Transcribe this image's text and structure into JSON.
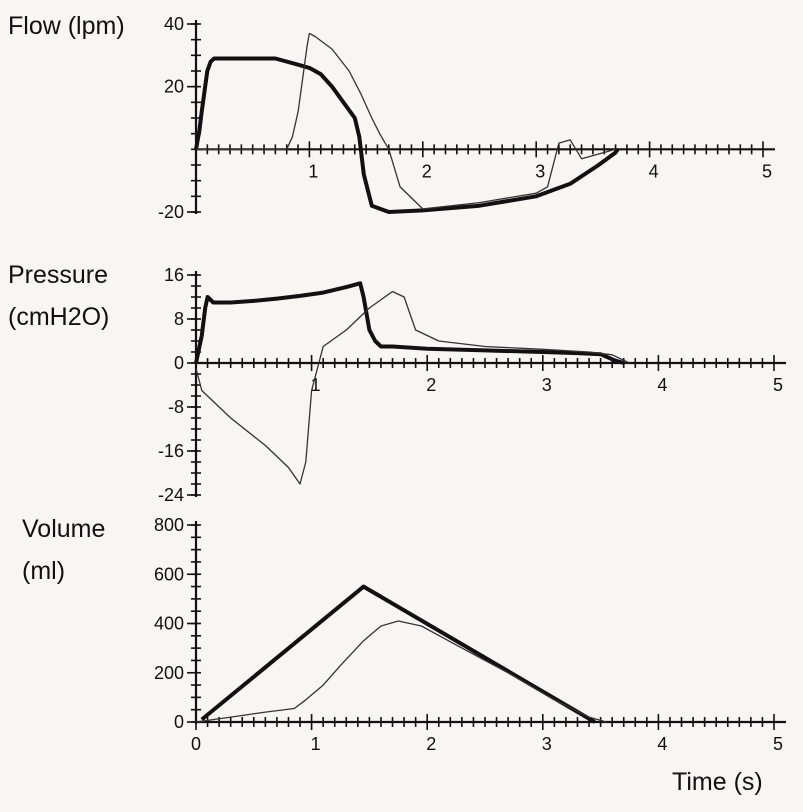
{
  "x_axis_label": "Time (s)",
  "chart_data": [
    {
      "type": "line",
      "title": "",
      "ylabel": "Flow (lpm)",
      "ylabel_lines": [
        "Flow (lpm)"
      ],
      "xlabel": "",
      "xlim": [
        0,
        5
      ],
      "ylim": [
        -20,
        40
      ],
      "yticks": [
        {
          "v": 40,
          "t": "40"
        },
        {
          "v": 20,
          "t": "20"
        },
        {
          "v": -20,
          "t": "-20"
        }
      ],
      "series": [
        {
          "name": "thick",
          "x": [
            0,
            0.03,
            0.05,
            0.1,
            0.13,
            0.16,
            0.3,
            0.5,
            0.7,
            0.9,
            1.0,
            1.1,
            1.2,
            1.3,
            1.4,
            1.44,
            1.48,
            1.55,
            1.7,
            2.0,
            2.5,
            3.0,
            3.3,
            3.55,
            3.7,
            3.72
          ],
          "y": [
            0,
            6,
            12,
            25,
            28,
            29,
            29,
            29,
            29,
            27,
            26,
            24,
            20,
            15,
            10,
            4,
            -8,
            -18,
            -20,
            -19.5,
            -18,
            -15,
            -11,
            -5,
            -1,
            0
          ]
        },
        {
          "name": "thin",
          "x": [
            0,
            0.3,
            0.6,
            0.8,
            0.85,
            0.9,
            0.95,
            0.98,
            1.0,
            1.05,
            1.2,
            1.35,
            1.45,
            1.55,
            1.62,
            1.7,
            1.8,
            2.0,
            2.5,
            3.0,
            3.1,
            3.2,
            3.3,
            3.4,
            3.55,
            3.7
          ],
          "y": [
            0,
            0,
            0,
            0,
            4,
            12,
            25,
            33,
            37,
            36,
            32,
            25,
            18,
            10,
            5,
            0,
            -12,
            -19,
            -17,
            -14,
            -12,
            2,
            3,
            -3,
            -1.5,
            0
          ]
        }
      ],
      "x_tick_labels": [
        {
          "v": 1,
          "t": "1"
        },
        {
          "v": 2,
          "t": "2"
        },
        {
          "v": 3,
          "t": "3"
        },
        {
          "v": 4,
          "t": "4"
        },
        {
          "v": 5,
          "t": "5"
        }
      ]
    },
    {
      "type": "line",
      "title": "",
      "ylabel": "Pressure (cmH2O)",
      "ylabel_lines": [
        "Pressure",
        "(cmH2O)"
      ],
      "xlabel": "",
      "xlim": [
        0,
        5
      ],
      "ylim": [
        -24,
        16
      ],
      "yticks": [
        {
          "v": 16,
          "t": "16"
        },
        {
          "v": 8,
          "t": "8"
        },
        {
          "v": 0,
          "t": "0"
        },
        {
          "v": -8,
          "t": "-8"
        },
        {
          "v": -16,
          "t": "-16"
        },
        {
          "v": -24,
          "t": "-24"
        }
      ],
      "series": [
        {
          "name": "thick",
          "x": [
            0,
            0.05,
            0.08,
            0.1,
            0.15,
            0.3,
            0.5,
            0.7,
            0.9,
            1.1,
            1.3,
            1.42,
            1.45,
            1.5,
            1.55,
            1.6,
            1.7,
            2.0,
            2.5,
            3.0,
            3.3,
            3.5,
            3.62,
            3.7
          ],
          "y": [
            0,
            5,
            10,
            12,
            11,
            11,
            11.3,
            11.7,
            12.2,
            12.8,
            13.8,
            14.5,
            12,
            6,
            4,
            3,
            3,
            2.6,
            2.3,
            2,
            1.8,
            1.6,
            0.5,
            0
          ]
        },
        {
          "name": "thin",
          "x": [
            0,
            0.05,
            0.3,
            0.6,
            0.8,
            0.9,
            0.95,
            1.0,
            1.1,
            1.3,
            1.5,
            1.7,
            1.8,
            1.9,
            2.1,
            2.5,
            3.0,
            3.4,
            3.6,
            3.75
          ],
          "y": [
            -1,
            -5,
            -10,
            -15,
            -19,
            -22,
            -18,
            -5,
            3,
            6,
            10,
            13,
            12,
            6,
            4,
            3,
            2.5,
            2,
            1.5,
            0
          ]
        }
      ],
      "x_tick_labels": [
        {
          "v": 1,
          "t": "1"
        },
        {
          "v": 2,
          "t": "2"
        },
        {
          "v": 3,
          "t": "3"
        },
        {
          "v": 4,
          "t": "4"
        },
        {
          "v": 5,
          "t": "5"
        }
      ]
    },
    {
      "type": "line",
      "title": "",
      "ylabel": "Volume (ml)",
      "ylabel_lines": [
        "Volume",
        "(ml)"
      ],
      "xlabel": "Time (s)",
      "xlim": [
        0,
        5
      ],
      "ylim": [
        0,
        800
      ],
      "yticks": [
        {
          "v": 800,
          "t": "800"
        },
        {
          "v": 600,
          "t": "600"
        },
        {
          "v": 400,
          "t": "400"
        },
        {
          "v": 200,
          "t": "200"
        },
        {
          "v": 0,
          "t": "0"
        }
      ],
      "series": [
        {
          "name": "thick",
          "x": [
            0.05,
            1.45,
            3.45
          ],
          "y": [
            10,
            550,
            0
          ]
        },
        {
          "name": "thin",
          "x": [
            0,
            0.3,
            0.6,
            0.85,
            0.95,
            1.1,
            1.25,
            1.45,
            1.6,
            1.75,
            1.95,
            2.3,
            2.7,
            3.1,
            3.4,
            3.55
          ],
          "y": [
            0,
            20,
            40,
            55,
            90,
            150,
            230,
            330,
            390,
            410,
            390,
            300,
            200,
            90,
            20,
            0
          ]
        }
      ],
      "x_tick_labels": [
        {
          "v": 0,
          "t": "0"
        },
        {
          "v": 1,
          "t": "1"
        },
        {
          "v": 2,
          "t": "2"
        },
        {
          "v": 3,
          "t": "3"
        },
        {
          "v": 4,
          "t": "4"
        },
        {
          "v": 5,
          "t": "5"
        }
      ]
    }
  ]
}
